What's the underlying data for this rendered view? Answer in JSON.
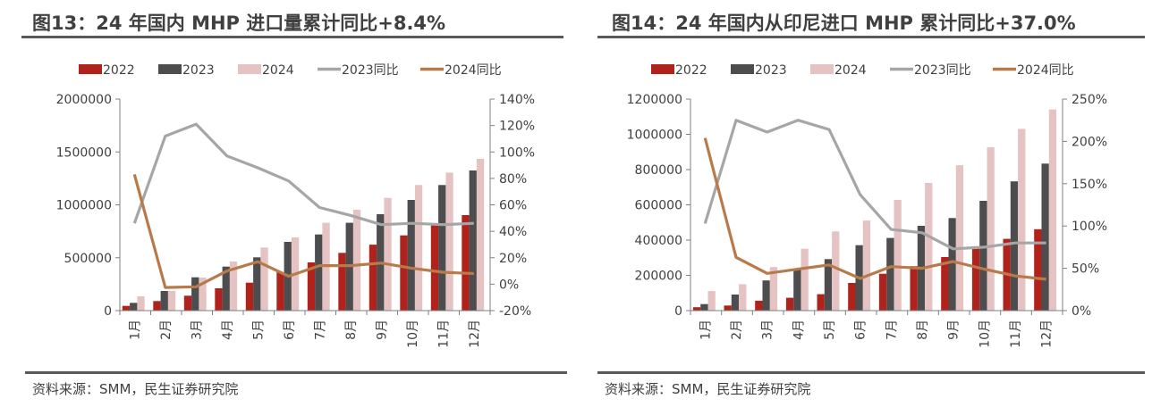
{
  "colors": {
    "s2022": "#b0231c",
    "s2023": "#4d4d4f",
    "s2024": "#e6c3c3",
    "yoy2023": "#a6a6a6",
    "yoy2024": "#b87a4b",
    "axis": "#7f7f7f"
  },
  "panels": [
    {
      "title": "图13：24 年国内 MHP 进口量累计同比+8.4%",
      "source": "资料来源：SMM，民生证券研究院"
    },
    {
      "title": "图14：24 年国内从印尼进口 MHP 累计同比+37.0%",
      "source": "资料来源：SMM，民生证券研究院"
    }
  ],
  "chart_data": [
    {
      "type": "bar",
      "title": "图13：24 年国内 MHP 进口量累计同比+8.4%",
      "xlabel": "",
      "ylabel": "",
      "categories": [
        "1月",
        "2月",
        "3月",
        "4月",
        "5月",
        "6月",
        "7月",
        "8月",
        "9月",
        "10月",
        "11月",
        "12月"
      ],
      "legend_position": "top",
      "left_axis": {
        "ylim": [
          0,
          2000000
        ],
        "ticks": [
          0,
          500000,
          1000000,
          1500000,
          2000000
        ],
        "tick_labels": [
          "0",
          "500000",
          "1000000",
          "1500000",
          "2000000"
        ]
      },
      "right_axis": {
        "ylim": [
          -20,
          140
        ],
        "ticks": [
          -20,
          0,
          20,
          40,
          60,
          80,
          100,
          120,
          140
        ],
        "tick_labels": [
          "-20%",
          "0%",
          "20%",
          "40%",
          "60%",
          "80%",
          "100%",
          "120%",
          "140%"
        ]
      },
      "series": [
        {
          "name": "2022",
          "type": "bar",
          "axis": "left",
          "values": [
            45000,
            90000,
            141000,
            211000,
            264000,
            363000,
            456000,
            546000,
            624000,
            711000,
            813000,
            903000
          ]
        },
        {
          "name": "2023",
          "type": "bar",
          "axis": "left",
          "values": [
            73000,
            186000,
            315000,
            416000,
            504000,
            650000,
            720000,
            830000,
            911000,
            1046000,
            1187000,
            1325000
          ]
        },
        {
          "name": "2024",
          "type": "bar",
          "axis": "left",
          "values": [
            135000,
            186000,
            312000,
            464000,
            597000,
            692000,
            830000,
            954000,
            1066000,
            1187000,
            1305000,
            1435000
          ]
        },
        {
          "name": "2023同比",
          "type": "line",
          "axis": "right",
          "values": [
            46,
            112,
            121,
            97,
            88,
            78,
            58,
            52,
            45,
            46,
            45,
            46
          ]
        },
        {
          "name": "2024同比",
          "type": "line",
          "axis": "right",
          "values": [
            83,
            -2.5,
            -2,
            10,
            17,
            6,
            14,
            14,
            16,
            12,
            9,
            8
          ]
        }
      ]
    },
    {
      "type": "bar",
      "title": "图14：24 年国内从印尼进口 MHP 累计同比+37.0%",
      "xlabel": "",
      "ylabel": "",
      "categories": [
        "1月",
        "2月",
        "3月",
        "4月",
        "5月",
        "6月",
        "7月",
        "8月",
        "9月",
        "10月",
        "11月",
        "12月"
      ],
      "legend_position": "top",
      "left_axis": {
        "ylim": [
          0,
          1200000
        ],
        "ticks": [
          0,
          200000,
          400000,
          600000,
          800000,
          1000000,
          1200000
        ],
        "tick_labels": [
          "0",
          "200000",
          "400000",
          "600000",
          "800000",
          "1000000",
          "1200000"
        ]
      },
      "right_axis": {
        "ylim": [
          0,
          250
        ],
        "ticks": [
          0,
          50,
          100,
          150,
          200,
          250
        ],
        "tick_labels": [
          "0%",
          "50%",
          "100%",
          "150%",
          "200%",
          "250%"
        ]
      },
      "series": [
        {
          "name": "2022",
          "type": "bar",
          "axis": "left",
          "values": [
            19000,
            29000,
            56000,
            73000,
            93000,
            157000,
            209000,
            252000,
            304000,
            353000,
            407000,
            462000
          ]
        },
        {
          "name": "2023",
          "type": "bar",
          "axis": "left",
          "values": [
            37000,
            91000,
            171000,
            235000,
            292000,
            371000,
            412000,
            481000,
            525000,
            623000,
            733000,
            834000
          ]
        },
        {
          "name": "2024",
          "type": "bar",
          "axis": "left",
          "values": [
            111000,
            150000,
            247000,
            351000,
            449000,
            511000,
            628000,
            724000,
            825000,
            927000,
            1031000,
            1141000
          ]
        },
        {
          "name": "2023同比",
          "type": "line",
          "axis": "right",
          "values": [
            103,
            225,
            211,
            225,
            214,
            137,
            96,
            92,
            73,
            75,
            80,
            80
          ]
        },
        {
          "name": "2024同比",
          "type": "line",
          "axis": "right",
          "values": [
            204,
            63,
            44,
            49,
            54,
            38,
            52,
            50,
            58,
            49,
            41,
            37
          ]
        }
      ]
    }
  ]
}
